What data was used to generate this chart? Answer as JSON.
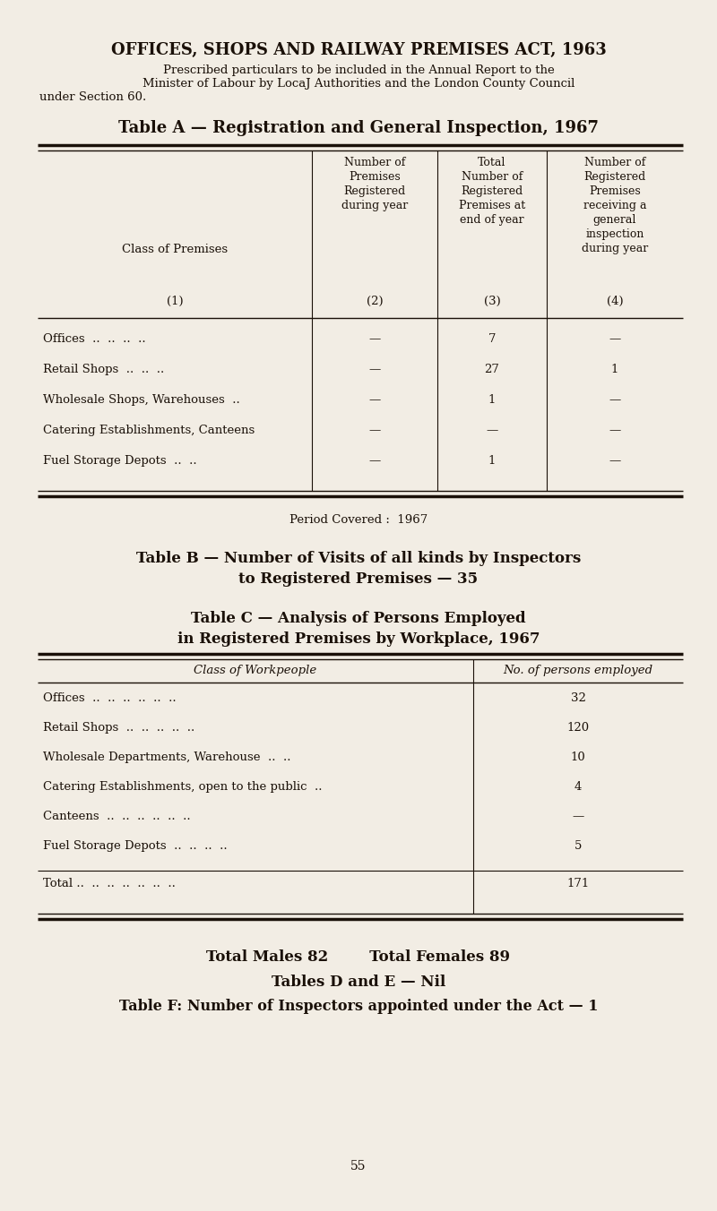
{
  "bg_color": "#f2ede4",
  "text_color": "#1a1008",
  "page_title": "OFFICES, SHOPS AND RAILWAY PREMISES ACT, 1963",
  "subtitle_line1": "Prescribed particulars to be included in the Annual Report to the",
  "subtitle_line2": "Minister of Labour by LocaJ Authorities and the London County Council",
  "subtitle_line3": "under Section 60.",
  "table_a_title": "Table A — Registration and General Inspection, 1967",
  "table_a_col2_header": "Number of\nPremises\nRegistered\nduring year",
  "table_a_col3_header": "Total\nNumber of\nRegistered\nPremises at\nend of year",
  "table_a_col4_header": "Number of\nRegistered\nPremises\nreceiving a\ngeneral\ninspection\nduring year",
  "table_a_rows": [
    [
      "Offices  ..  ..  ..  ..",
      "—",
      "7",
      "—"
    ],
    [
      "Retail Shops  ..  ..  ..",
      "—",
      "27",
      "1"
    ],
    [
      "Wholesale Shops, Warehouses  ..",
      "—",
      "1",
      "—"
    ],
    [
      "Catering Establishments, Canteens",
      "—",
      "—",
      "—"
    ],
    [
      "Fuel Storage Depots  ..  ..",
      "—",
      "1",
      "—"
    ]
  ],
  "period_covered": "Period Covered :  1967",
  "table_b_line1": "Table B — Number of Visits of all kinds by Inspectors",
  "table_b_line2": "to Registered Premises — 35",
  "table_c_line1": "Table C — Analysis of Persons Employed",
  "table_c_line2": "in Registered Premises by Workplace, 1967",
  "table_c_col1_header": "Class of Workpeople",
  "table_c_col2_header": "No. of persons employed",
  "table_c_rows": [
    [
      "Offices  ..  ..  ..  ..  ..  ..",
      "32"
    ],
    [
      "Retail Shops  ..  ..  ..  ..  ..",
      "120"
    ],
    [
      "Wholesale Departments, Warehouse  ..  ..",
      "10"
    ],
    [
      "Catering Establishments, open to the public  ..",
      "4"
    ],
    [
      "Canteens  ..  ..  ..  ..  ..  ..",
      "—"
    ],
    [
      "Fuel Storage Depots  ..  ..  ..  ..",
      "5"
    ]
  ],
  "table_c_total": [
    "Total ..  ..  ..  ..  ..  ..  ..",
    "171"
  ],
  "footer_line1": "Total Males 82        Total Females 89",
  "footer_line2": "Tables D and E — Nil",
  "footer_line3": "Table F: Number of Inspectors appointed under the Act — 1",
  "page_number": "55"
}
